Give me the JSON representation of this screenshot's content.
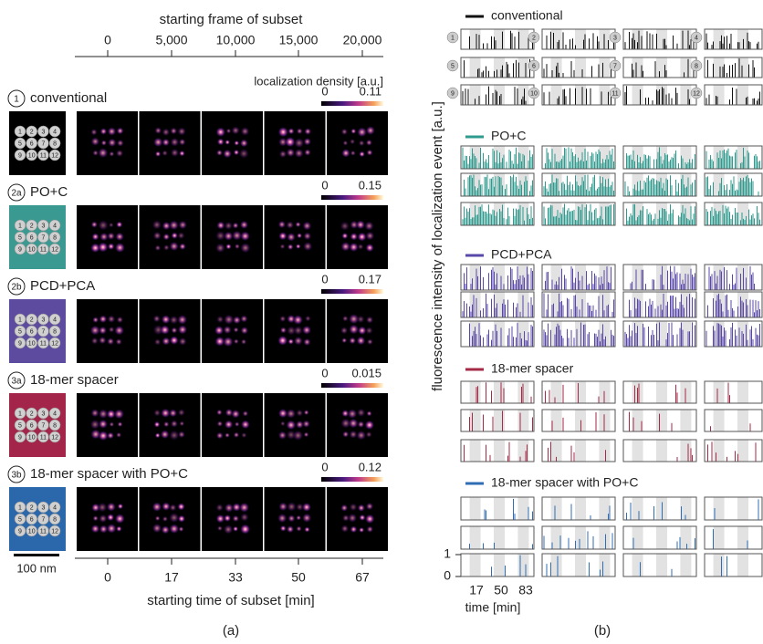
{
  "site_labels": [
    "1",
    "2",
    "3",
    "4",
    "5",
    "6",
    "7",
    "8",
    "9",
    "10",
    "11",
    "12"
  ],
  "panel_a": {
    "top_axis_label": "starting frame of subset",
    "top_ticks": [
      "0",
      "5,000",
      "10,000",
      "15,000",
      "20,000"
    ],
    "colorbar_label": "localization density [a.u.]",
    "rows": [
      {
        "marker": "1",
        "name": "conventional",
        "cbar_min": "0",
        "cbar_max": "0.11",
        "color": "#000000"
      },
      {
        "marker": "2a",
        "name": "PO+C",
        "cbar_min": "0",
        "cbar_max": "0.15",
        "color": "#3a9a92"
      },
      {
        "marker": "2b",
        "name": "PCD+PCA",
        "cbar_min": "0",
        "cbar_max": "0.17",
        "color": "#5d4b9f"
      },
      {
        "marker": "3a",
        "name": "18-mer spacer",
        "cbar_min": "0",
        "cbar_max": "0.015",
        "color": "#a3264a"
      },
      {
        "marker": "3b",
        "name": "18-mer spacer with PO+C",
        "cbar_min": "0",
        "cbar_max": "0.12",
        "color": "#2a67ab"
      }
    ],
    "scale_bar": "100 nm",
    "bottom_ticks": [
      "0",
      "17",
      "33",
      "50",
      "67"
    ],
    "bottom_axis_label": "starting time of subset [min]",
    "caption": "(a)"
  },
  "panel_b": {
    "y_label": "fluorescence intensity of localization event [a.u.]",
    "groups": [
      {
        "name": "conventional",
        "color": "#111111"
      },
      {
        "name": "PO+C",
        "color": "#2f9a8e"
      },
      {
        "name": "PCD+PCA",
        "color": "#5a48a8"
      },
      {
        "name": "18-mer spacer",
        "color": "#a52a45"
      },
      {
        "name": "18-mer spacer with PO+C",
        "color": "#2f6db5"
      }
    ],
    "y_ticks": [
      "1",
      "0"
    ],
    "x_ticks": [
      "17",
      "50",
      "83"
    ],
    "x_label": "time [min]",
    "caption": "(b)"
  }
}
